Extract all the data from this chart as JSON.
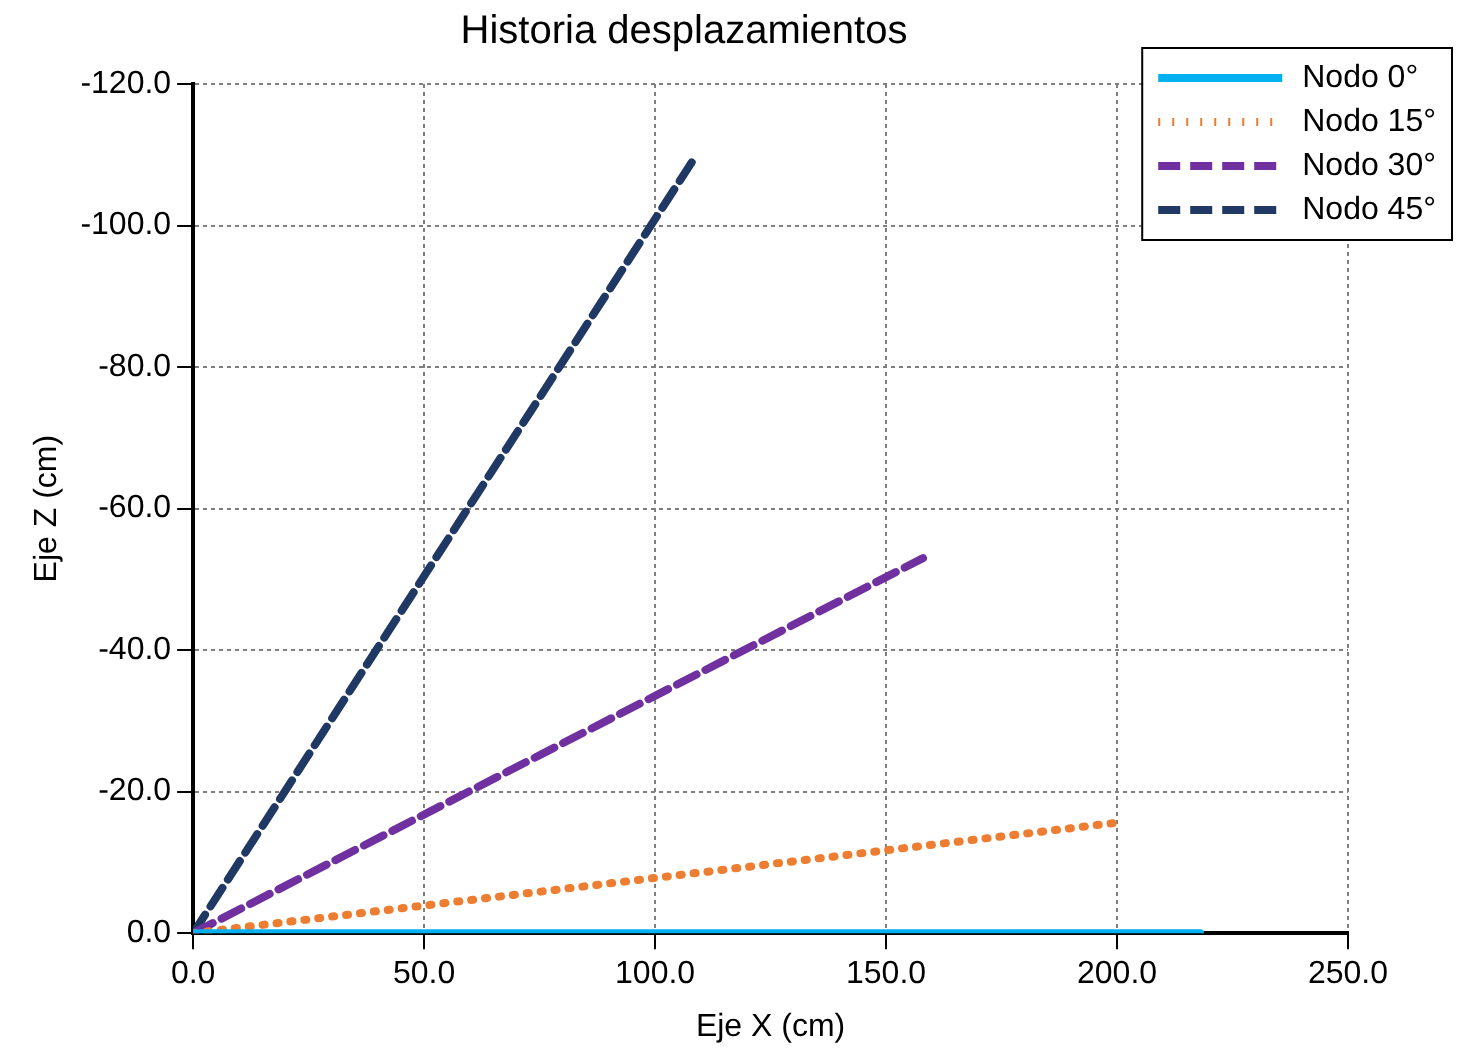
{
  "chart_data": {
    "type": "line",
    "title": "Historia desplazamientos",
    "xlabel": "Eje X (cm)",
    "ylabel": "Eje Z (cm)",
    "xlim": [
      0,
      250
    ],
    "xticks": [
      {
        "value": 0,
        "label": "0.0"
      },
      {
        "value": 50,
        "label": "50.0"
      },
      {
        "value": 100,
        "label": "100.0"
      },
      {
        "value": 150,
        "label": "150.0"
      },
      {
        "value": 200,
        "label": "200.0"
      },
      {
        "value": 250,
        "label": "250.0"
      }
    ],
    "ylim": [
      0,
      -120
    ],
    "yticks": [
      {
        "value": 0,
        "label": "0.0"
      },
      {
        "value": -20,
        "label": "-20.0"
      },
      {
        "value": -40,
        "label": "-40.0"
      },
      {
        "value": -60,
        "label": "-60.0"
      },
      {
        "value": -80,
        "label": "-80.0"
      },
      {
        "value": -100,
        "label": "-100.0"
      },
      {
        "value": -120,
        "label": "-120.0"
      }
    ],
    "grid": true,
    "legend": "top right",
    "marker": "none",
    "series": [
      {
        "name": "Nodo 0°",
        "color": "#00b0f0",
        "line_style": "solid",
        "x": [
          0,
          218
        ],
        "values": [
          0,
          0
        ]
      },
      {
        "name": "Nodo 15°",
        "color": "#ed7d31",
        "line_style": "dotted",
        "x": [
          0,
          201
        ],
        "values": [
          0,
          -15.7
        ]
      },
      {
        "name": "Nodo 30°",
        "color": "#7030a0",
        "line_style": "dashed",
        "x": [
          0,
          158
        ],
        "values": [
          0,
          -53
        ]
      },
      {
        "name": "Nodo 45°",
        "color": "#203864",
        "line_style": "dashed",
        "x": [
          0,
          108
        ],
        "values": [
          0,
          -109
        ]
      }
    ]
  }
}
